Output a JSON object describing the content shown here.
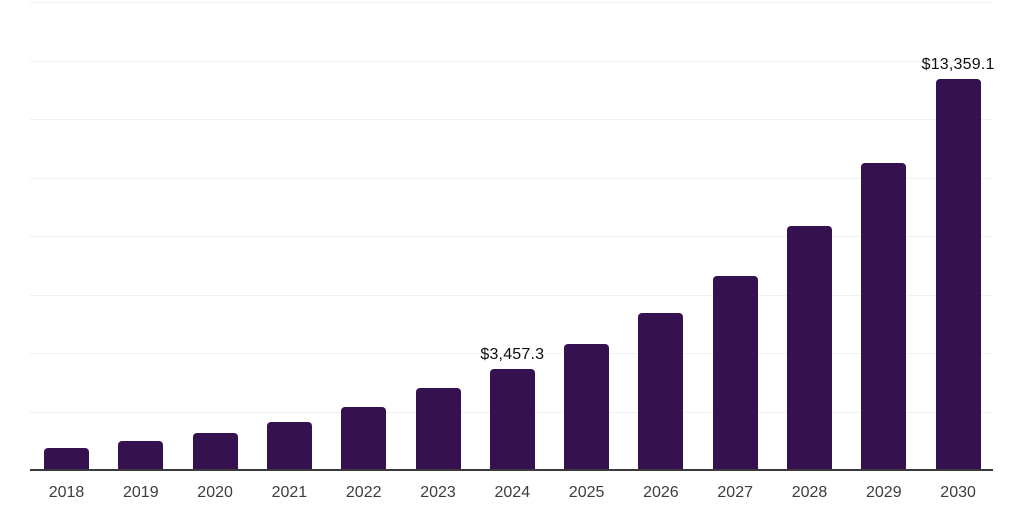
{
  "chart_data": {
    "type": "bar",
    "title": "",
    "xlabel": "",
    "ylabel": "",
    "categories": [
      "2018",
      "2019",
      "2020",
      "2021",
      "2022",
      "2023",
      "2024",
      "2025",
      "2026",
      "2027",
      "2028",
      "2029",
      "2030"
    ],
    "values": [
      765,
      1005,
      1275,
      1655,
      2165,
      2815,
      3457.3,
      4300,
      5360,
      6650,
      8330,
      10510,
      13359.1
    ],
    "bar_labels": [
      "",
      "",
      "",
      "",
      "",
      "",
      "$3,457.3",
      "",
      "",
      "",
      "",
      "",
      "$13,359.1"
    ],
    "ylim": [
      0,
      16000
    ],
    "gridline_step": 2000,
    "grid": "horizontal-light",
    "legend": "none",
    "colors": {
      "bar": "#36114F",
      "grid_line": "#f1f1f1",
      "axis_line": "#3a3a3a",
      "tick_label": "#3c3c3c",
      "value_label": "#0e0e0e",
      "background": "#ffffff"
    }
  }
}
